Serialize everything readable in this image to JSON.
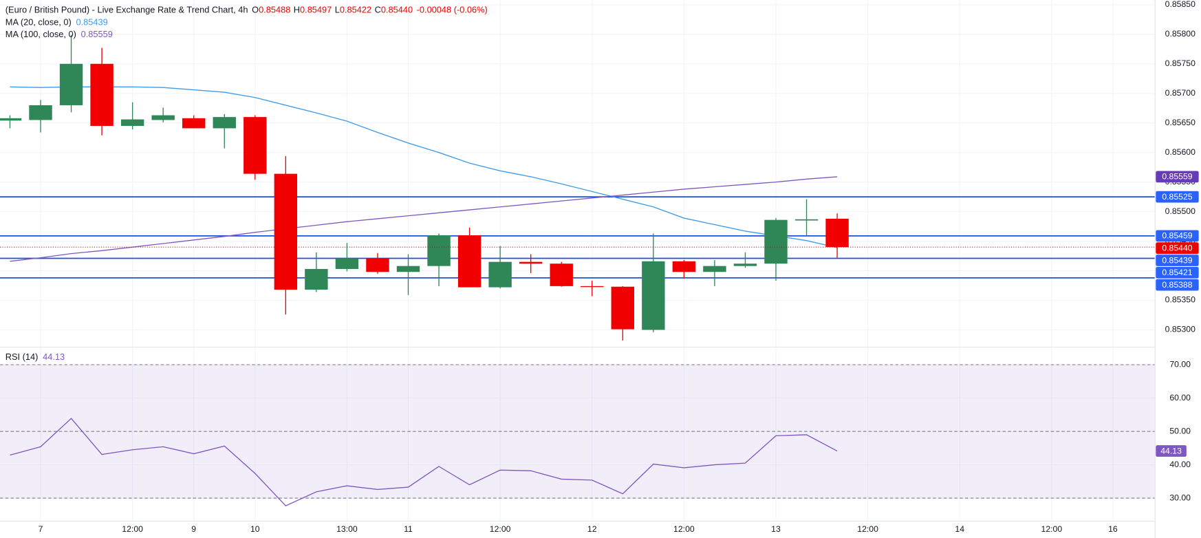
{
  "chart_data": [
    {
      "type": "candlestick",
      "title": "(Euro / British Pound) - Live Exchange Rate & Trend Chart, 4h",
      "ohlc": [
        {
          "key": "O",
          "value": "0.85488"
        },
        {
          "key": "H",
          "value": "0.85497"
        },
        {
          "key": "L",
          "value": "0.85422"
        },
        {
          "key": "C",
          "value": "0.85440"
        }
      ],
      "change": "-0.00048 (-0.06%)",
      "x": [
        0,
        1,
        2,
        3,
        4,
        5,
        6,
        7,
        8,
        9,
        10,
        11,
        12,
        13,
        14,
        15,
        16,
        17,
        18,
        19,
        20,
        21,
        22,
        23,
        24,
        25,
        26,
        27
      ],
      "open": [
        0.85654,
        0.85655,
        0.8568,
        0.8575,
        0.85645,
        0.85655,
        0.85658,
        0.85641,
        0.8566,
        0.85564,
        0.85368,
        0.85403,
        0.85421,
        0.85398,
        0.85408,
        0.8546,
        0.85372,
        0.85415,
        0.85412,
        0.85374,
        0.85373,
        0.853,
        0.85416,
        0.85398,
        0.85408,
        0.85412,
        0.85485,
        0.85488
      ],
      "high": [
        0.85663,
        0.85689,
        0.85799,
        0.85777,
        0.85685,
        0.85676,
        0.85663,
        0.85665,
        0.85663,
        0.85594,
        0.85431,
        0.85447,
        0.8543,
        0.85428,
        0.85463,
        0.85473,
        0.85442,
        0.85428,
        0.85415,
        0.85383,
        0.85374,
        0.85463,
        0.85418,
        0.85418,
        0.85431,
        0.85489,
        0.85521,
        0.85497
      ],
      "low": [
        0.85641,
        0.85634,
        0.85668,
        0.85629,
        0.85639,
        0.85651,
        0.85641,
        0.85607,
        0.85554,
        0.85326,
        0.85364,
        0.85399,
        0.85395,
        0.85359,
        0.85374,
        0.85372,
        0.8537,
        0.85396,
        0.85373,
        0.85357,
        0.85282,
        0.85296,
        0.85387,
        0.85374,
        0.85405,
        0.85383,
        0.8546,
        0.85422
      ],
      "close": [
        0.85658,
        0.8568,
        0.8575,
        0.85645,
        0.85656,
        0.85663,
        0.85641,
        0.8566,
        0.85564,
        0.85368,
        0.85403,
        0.85421,
        0.85398,
        0.85408,
        0.8546,
        0.85372,
        0.85415,
        0.85412,
        0.85374,
        0.85373,
        0.85301,
        0.85416,
        0.85398,
        0.85408,
        0.85412,
        0.85486,
        0.85487,
        0.8544
      ],
      "up_color": "#2f8657",
      "down_color": "#f00000",
      "series": [
        {
          "name": "MA (20, close, 0)",
          "legend_value": "0.85439",
          "color": "#3d9be9",
          "values": [
            0.85711,
            0.8571,
            0.85711,
            0.85711,
            0.85711,
            0.8571,
            0.85706,
            0.85702,
            0.85693,
            0.8568,
            0.85667,
            0.85653,
            0.85634,
            0.85616,
            0.856,
            0.85582,
            0.85569,
            0.85559,
            0.85547,
            0.85534,
            0.85521,
            0.85508,
            0.85489,
            0.85478,
            0.85467,
            0.85459,
            0.85451,
            0.85439
          ]
        },
        {
          "name": "MA (100, close, 0)",
          "legend_value": "0.85559",
          "color": "#7e57c2",
          "values": [
            0.85416,
            0.85422,
            0.85429,
            0.85434,
            0.8544,
            0.85446,
            0.85452,
            0.85458,
            0.85465,
            0.85471,
            0.85477,
            0.85483,
            0.85488,
            0.85493,
            0.85498,
            0.85503,
            0.85508,
            0.85513,
            0.85518,
            0.85523,
            0.85528,
            0.85533,
            0.85538,
            0.85542,
            0.85546,
            0.8555,
            0.85555,
            0.85559
          ]
        }
      ],
      "hlines": {
        "color": "#1e4fd8",
        "values": [
          0.85525,
          0.85459,
          0.85421,
          0.85388
        ]
      },
      "last_price": {
        "value": 0.8544,
        "label": "0.85440",
        "color": "#f00000"
      },
      "xlim": [
        -0.325,
        37.375
      ],
      "xticks": [
        {
          "value": 1,
          "label": "7"
        },
        {
          "value": 4,
          "label": "12:00"
        },
        {
          "value": 6,
          "label": "9"
        },
        {
          "value": 8,
          "label": "10"
        },
        {
          "value": 11,
          "label": "13:00"
        },
        {
          "value": 13,
          "label": "11"
        },
        {
          "value": 16,
          "label": "12:00"
        },
        {
          "value": 19,
          "label": "12"
        },
        {
          "value": 22,
          "label": "12:00"
        },
        {
          "value": 25,
          "label": "13"
        },
        {
          "value": 28,
          "label": "12:00"
        },
        {
          "value": 31,
          "label": "14"
        },
        {
          "value": 34,
          "label": "12:00"
        },
        {
          "value": 36,
          "label": "16"
        }
      ],
      "ylim": [
        0.85272,
        0.85858
      ],
      "yticks": [
        {
          "value": 0.853,
          "label": "0.85300"
        },
        {
          "value": 0.8535,
          "label": "0.85350"
        },
        {
          "value": 0.854,
          "label": "0.85400"
        },
        {
          "value": 0.8545,
          "label": "0.85450"
        },
        {
          "value": 0.855,
          "label": "0.85500"
        },
        {
          "value": 0.8555,
          "label": "0.85550"
        },
        {
          "value": 0.856,
          "label": "0.85600"
        },
        {
          "value": 0.8565,
          "label": "0.85650"
        },
        {
          "value": 0.857,
          "label": "0.85700"
        },
        {
          "value": 0.8575,
          "label": "0.85750"
        },
        {
          "value": 0.858,
          "label": "0.85800"
        },
        {
          "value": 0.8585,
          "label": "0.85850"
        }
      ],
      "grid": true
    },
    {
      "type": "line",
      "name": "RSI (14)",
      "legend_value": "44.13",
      "color": "#7e57c2",
      "x": [
        0,
        1,
        2,
        3,
        4,
        5,
        6,
        7,
        8,
        9,
        10,
        11,
        12,
        13,
        14,
        15,
        16,
        17,
        18,
        19,
        20,
        21,
        22,
        23,
        24,
        25,
        26,
        27
      ],
      "values": [
        42.9,
        45.4,
        53.9,
        43.1,
        44.5,
        45.4,
        43.3,
        45.6,
        37.4,
        27.7,
        31.9,
        33.7,
        32.6,
        33.3,
        39.5,
        34.0,
        38.4,
        38.2,
        35.7,
        35.4,
        31.3,
        40.2,
        39.1,
        40.0,
        40.5,
        48.7,
        49.0,
        44.13
      ],
      "ylim": [
        23.1,
        74.8
      ],
      "yticks": [
        {
          "value": 30,
          "label": "30.00"
        },
        {
          "value": 40,
          "label": "40.00"
        },
        {
          "value": 50,
          "label": "50.00"
        },
        {
          "value": 60,
          "label": "60.00"
        },
        {
          "value": 70,
          "label": "70.00"
        }
      ],
      "levels": [
        30,
        50,
        70
      ],
      "band": [
        30,
        70
      ],
      "grid": true
    }
  ]
}
